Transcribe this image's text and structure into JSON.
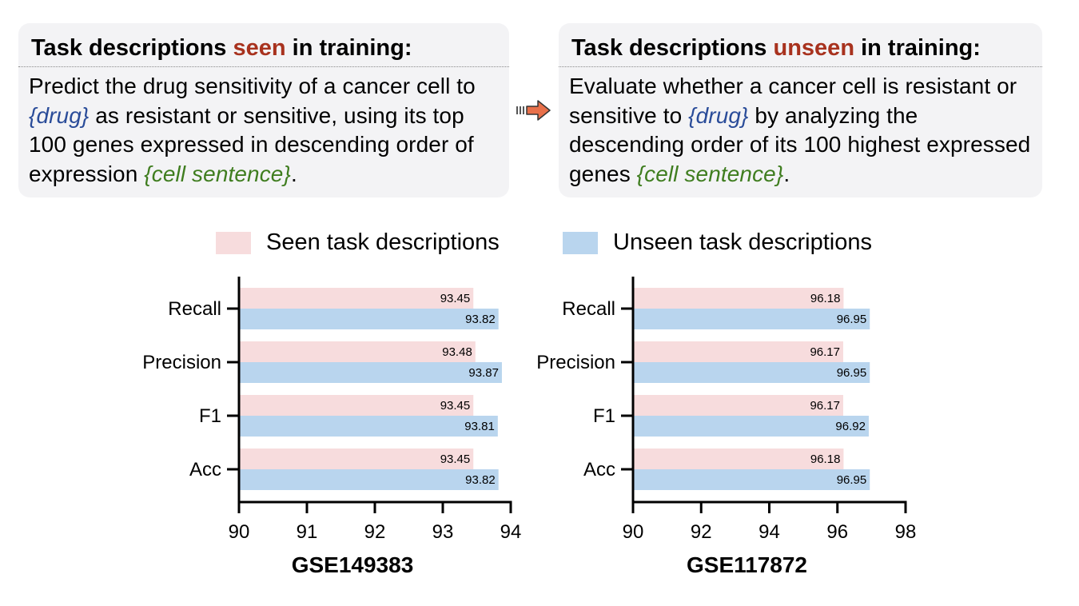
{
  "left_box": {
    "title_pre": "Task descriptions ",
    "title_highlight": "seen",
    "title_post": " in training:",
    "body_parts": [
      {
        "text": "Predict the drug sensitivity of a cancer cell to ",
        "style": "plain"
      },
      {
        "text": "{drug}",
        "style": "blue"
      },
      {
        "text": " as resistant or sensitive, using its top 100 genes expressed in descending order of expression ",
        "style": "plain"
      },
      {
        "text": "{cell sentence}",
        "style": "green"
      },
      {
        "text": ".",
        "style": "plain"
      }
    ]
  },
  "right_box": {
    "title_pre": "Task descriptions ",
    "title_highlight": "unseen",
    "title_post": " in training:",
    "body_parts": [
      {
        "text": "Evaluate whether a cancer cell is resistant or sensitive to ",
        "style": "plain"
      },
      {
        "text": "{drug}",
        "style": "blue"
      },
      {
        "text": " by analyzing the descending order of its 100 highest expressed genes ",
        "style": "plain"
      },
      {
        "text": "{cell sentence}",
        "style": "green"
      },
      {
        "text": ".",
        "style": "plain"
      }
    ]
  },
  "arrow_icon": "right-arrow-icon",
  "legend": {
    "seen_label": "Seen task descriptions",
    "unseen_label": "Unseen task descriptions"
  },
  "colors": {
    "seen": "#f7dcdd",
    "unseen": "#b9d5ee",
    "highlight_red": "#a8321e",
    "var_blue": "#2a4c99",
    "var_green": "#3f7d1f",
    "box_bg": "#f3f3f5",
    "arrow": "#e8704a"
  },
  "chart_data": [
    {
      "type": "bar",
      "orientation": "horizontal",
      "title": "GSE149383",
      "categories": [
        "Recall",
        "Precision",
        "F1",
        "Acc"
      ],
      "series": [
        {
          "name": "Seen task descriptions",
          "values": [
            93.45,
            93.48,
            93.45,
            93.45
          ]
        },
        {
          "name": "Unseen task descriptions",
          "values": [
            93.82,
            93.87,
            93.81,
            93.82
          ]
        }
      ],
      "xlim": [
        90,
        94
      ],
      "xticks": [
        90,
        91,
        92,
        93,
        94
      ],
      "value_labels": [
        [
          "93.45",
          "93.48",
          "93.45",
          "93.45"
        ],
        [
          "93.82",
          "93.87",
          "93.81",
          "93.82"
        ]
      ]
    },
    {
      "type": "bar",
      "orientation": "horizontal",
      "title": "GSE117872",
      "categories": [
        "Recall",
        "Precision",
        "F1",
        "Acc"
      ],
      "series": [
        {
          "name": "Seen task descriptions",
          "values": [
            96.18,
            96.17,
            96.17,
            96.18
          ]
        },
        {
          "name": "Unseen task descriptions",
          "values": [
            96.95,
            96.95,
            96.92,
            96.95
          ]
        }
      ],
      "xlim": [
        90,
        98
      ],
      "xticks": [
        90,
        92,
        94,
        96,
        98
      ],
      "value_labels": [
        [
          "96.18",
          "96.17",
          "96.17",
          "96.18"
        ],
        [
          "96.95",
          "96.95",
          "96.92",
          "96.95"
        ]
      ]
    }
  ]
}
